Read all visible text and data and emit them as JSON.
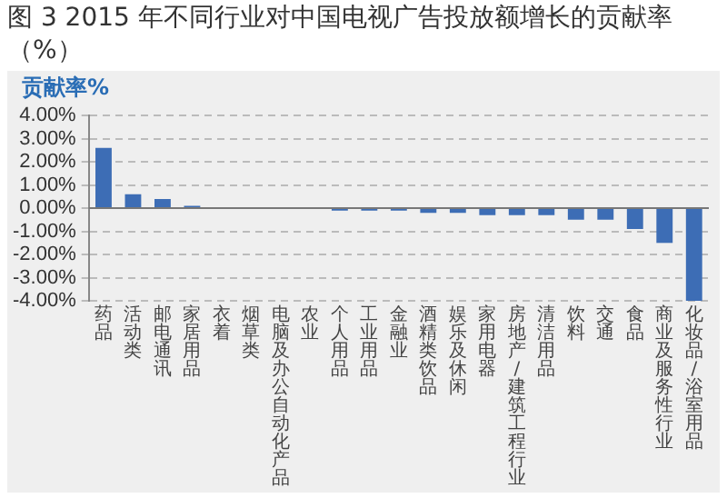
{
  "chart_data": {
    "type": "bar",
    "title": "图 3 2015 年不同行业对中国电视广告投放额增长的贡献率（%）",
    "ylabel": "贡献率%",
    "categories": [
      "药品",
      "活动类",
      "邮电通讯",
      "家居用品",
      "衣着",
      "烟草类",
      "电脑及办公自动化产品",
      "农业",
      "个人用品",
      "工业用品",
      "金融业",
      "酒精类饮品",
      "娱乐及休闲",
      "家用电器",
      "房地产/建筑工程行业",
      "清洁用品",
      "饮料",
      "交通",
      "食品",
      "商业及服务性行业",
      "化妆品/浴室用品"
    ],
    "values": [
      2.6,
      0.6,
      0.4,
      0.1,
      0,
      0,
      0,
      0,
      -0.1,
      -0.1,
      -0.1,
      -0.2,
      -0.2,
      -0.3,
      -0.3,
      -0.3,
      -0.5,
      -0.5,
      -0.9,
      -1.5,
      -4.0
    ],
    "color": "#3d6db5",
    "ylim": [
      -4,
      4
    ],
    "yticks": [
      {
        "value": -4,
        "label": "-4.00%"
      },
      {
        "value": -3,
        "label": "-3.00%"
      },
      {
        "value": -2,
        "label": "-2.00%"
      },
      {
        "value": -1,
        "label": "-1.00%"
      },
      {
        "value": 0,
        "label": "0.00%"
      },
      {
        "value": 1,
        "label": "1.00%"
      },
      {
        "value": 2,
        "label": "2.00%"
      },
      {
        "value": 3,
        "label": "3.00%"
      },
      {
        "value": 4,
        "label": "4.00%"
      }
    ],
    "grid": "y",
    "legend": false
  }
}
